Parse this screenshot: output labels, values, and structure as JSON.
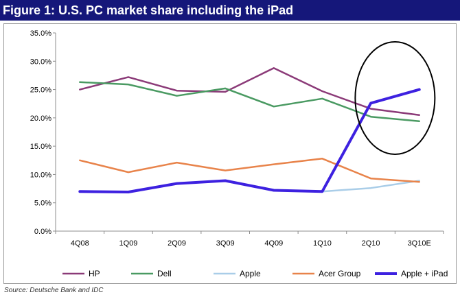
{
  "figure_title": "Figure 1: U.S. PC market share including the iPad",
  "source": "Source: Deutsche Bank and IDC",
  "chart_data": {
    "type": "line",
    "title": "Figure 1: U.S. PC market share including the iPad",
    "xlabel": "",
    "ylabel": "",
    "categories": [
      "4Q08",
      "1Q09",
      "2Q09",
      "3Q09",
      "4Q09",
      "1Q10",
      "2Q10",
      "3Q10E"
    ],
    "ylim": [
      0,
      35
    ],
    "yticks": [
      "0.0%",
      "5.0%",
      "10.0%",
      "15.0%",
      "20.0%",
      "25.0%",
      "30.0%",
      "35.0%"
    ],
    "grid": false,
    "legend_position": "bottom",
    "annotation": "ellipse around 2Q10–3Q10E",
    "series": [
      {
        "name": "HP",
        "color": "#8b3a78",
        "width": 2.5,
        "values": [
          25.0,
          27.2,
          24.8,
          24.6,
          28.8,
          24.7,
          21.6,
          20.5
        ]
      },
      {
        "name": "Dell",
        "color": "#4a9a62",
        "width": 2.5,
        "values": [
          26.3,
          25.9,
          23.9,
          25.2,
          22.0,
          23.4,
          20.2,
          19.4
        ]
      },
      {
        "name": "Apple",
        "color": "#a9cde8",
        "width": 2.5,
        "values": [
          7.0,
          6.9,
          8.4,
          8.9,
          7.2,
          7.0,
          7.6,
          8.9
        ]
      },
      {
        "name": "Acer Group",
        "color": "#e8834a",
        "width": 2.5,
        "values": [
          12.5,
          10.4,
          12.1,
          10.7,
          11.8,
          12.8,
          9.3,
          8.7
        ]
      },
      {
        "name": "Apple + iPad",
        "color": "#3d21e0",
        "width": 4,
        "values": [
          7.0,
          6.9,
          8.4,
          8.9,
          7.2,
          7.0,
          22.6,
          25.0
        ]
      }
    ]
  }
}
